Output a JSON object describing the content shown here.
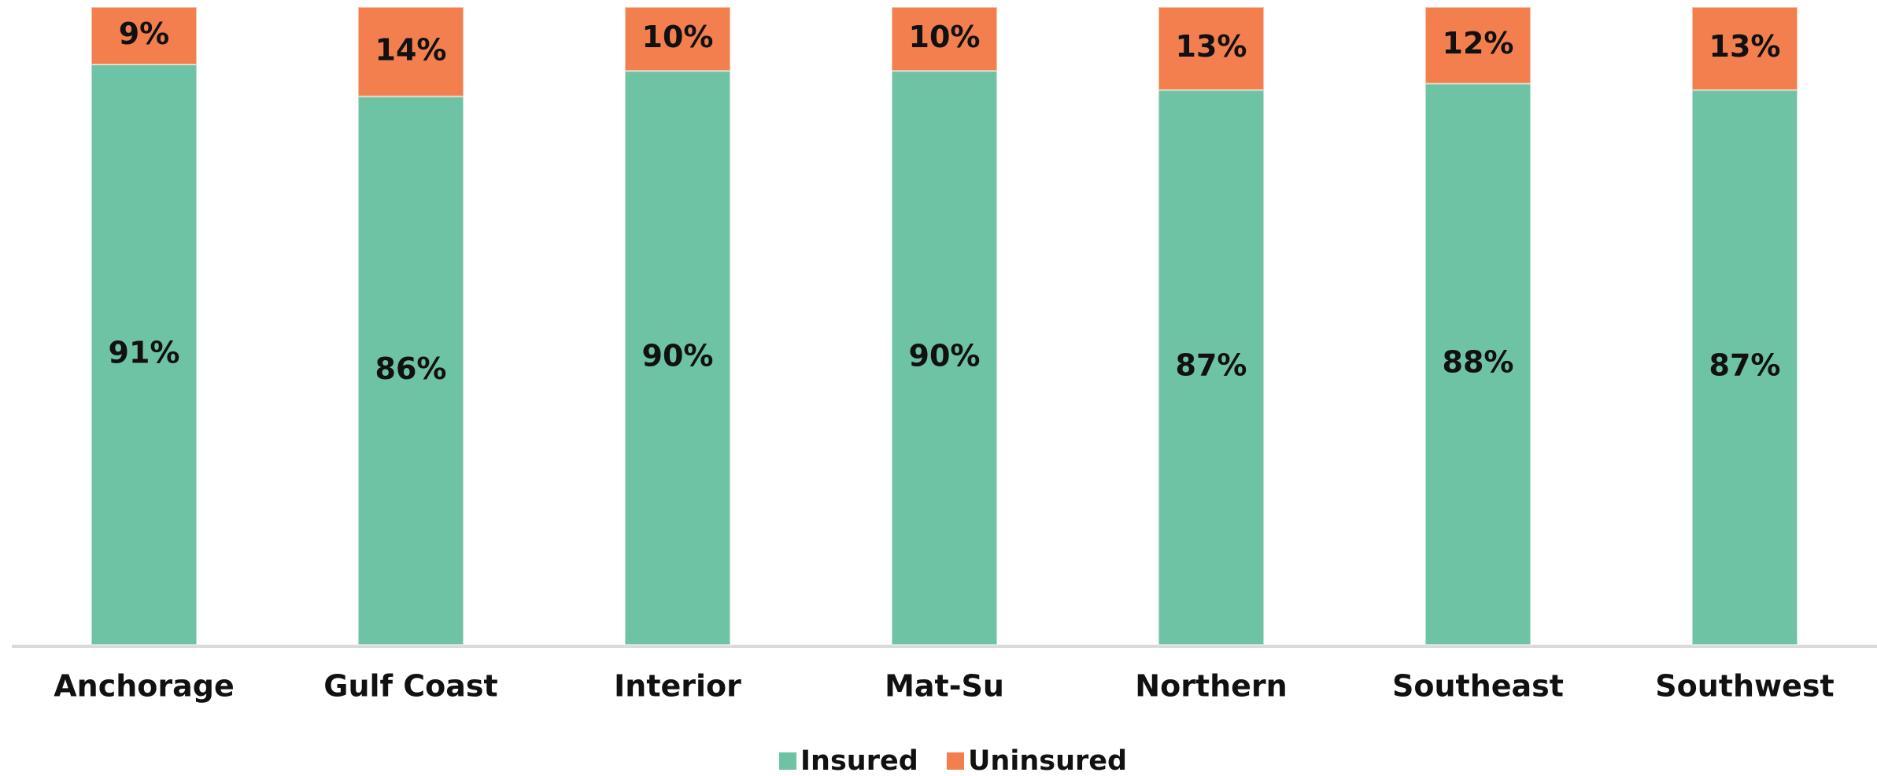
{
  "chart_data": {
    "type": "stacked_bar",
    "categories": [
      "Anchorage",
      "Gulf Coast",
      "Interior",
      "Mat-Su",
      "Northern",
      "Southeast",
      "Southwest"
    ],
    "series": [
      {
        "name": "Insured",
        "color": "#6fc3a5",
        "values": [
          91,
          86,
          90,
          90,
          87,
          88,
          87
        ],
        "value_labels": [
          "91%",
          "86%",
          "90%",
          "90%",
          "87%",
          "88%",
          "87%"
        ]
      },
      {
        "name": "Uninsured",
        "color": "#f47f4e",
        "values": [
          9,
          14,
          10,
          10,
          13,
          12,
          13
        ],
        "value_labels": [
          "9%",
          "14%",
          "10%",
          "10%",
          "13%",
          "12%",
          "13%"
        ]
      }
    ],
    "ylim": [
      0,
      100
    ],
    "legend": "bottom"
  }
}
